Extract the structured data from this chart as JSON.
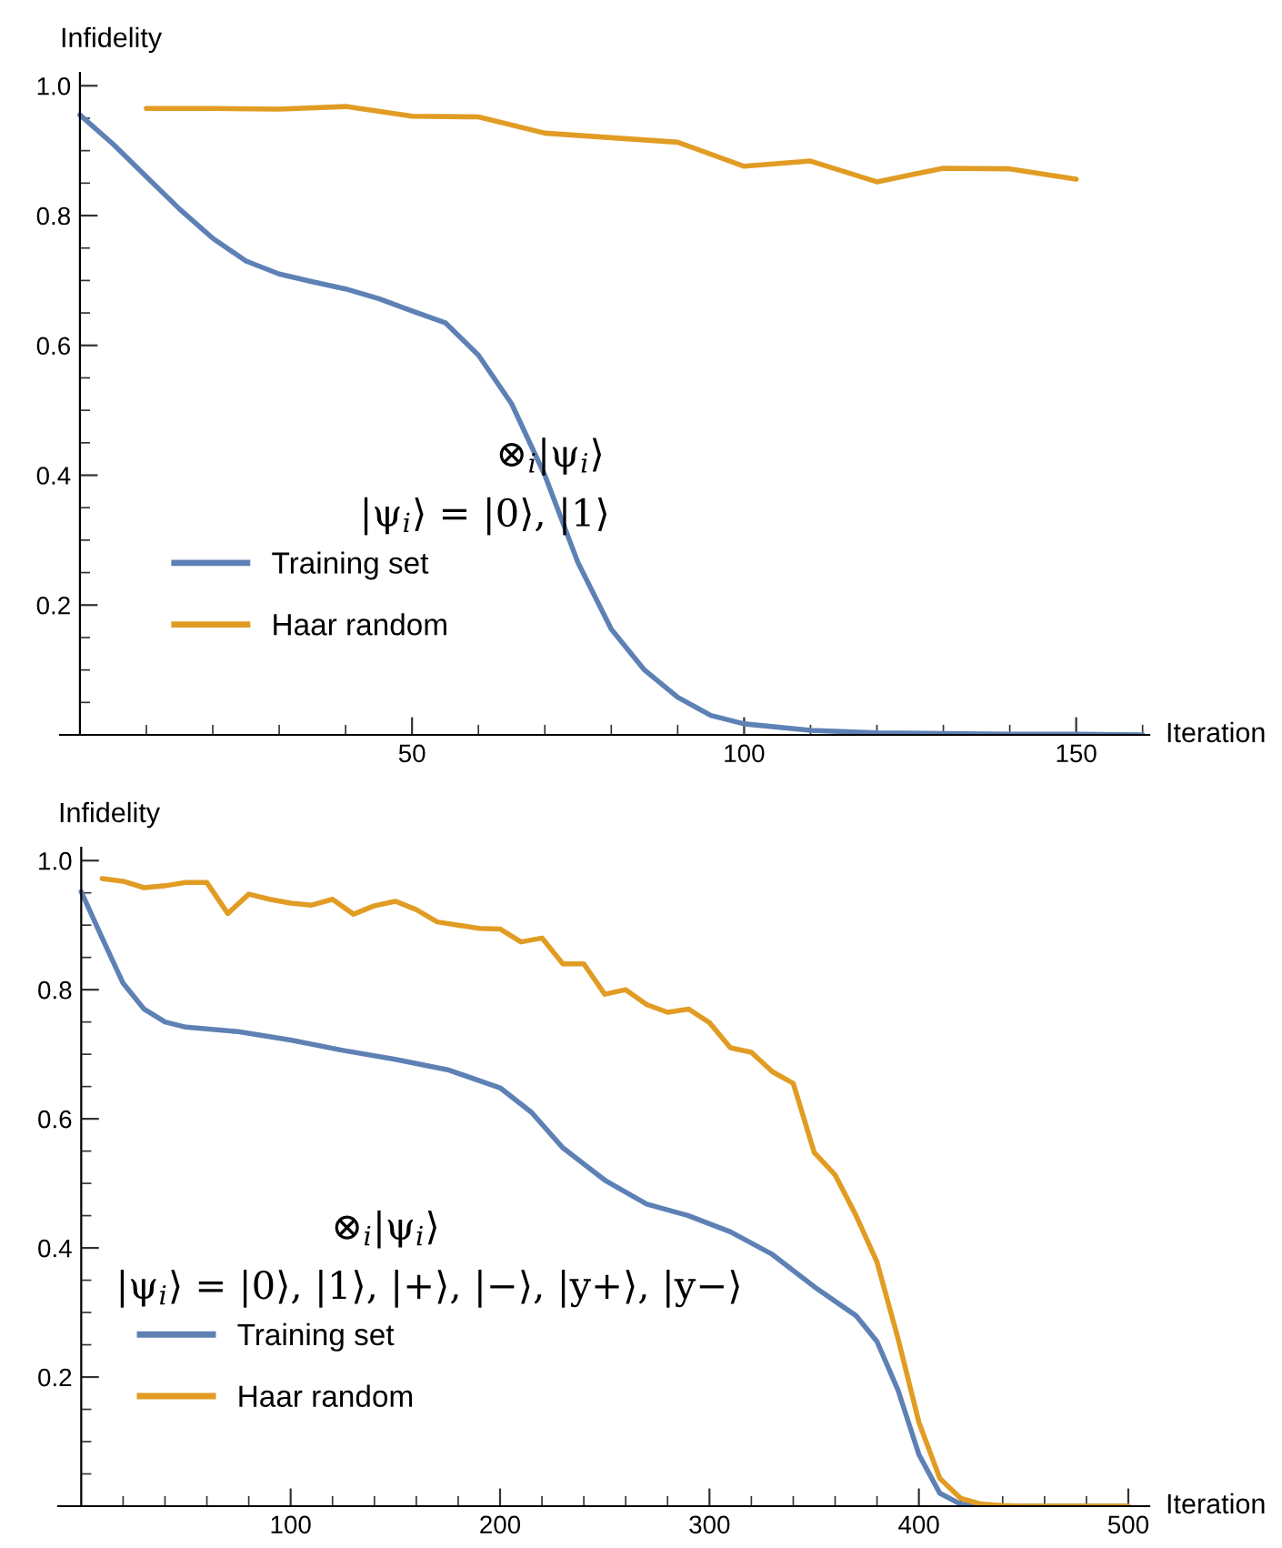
{
  "chart_data": [
    {
      "type": "line",
      "xlabel": "Iteration",
      "ylabel": "Infidelity",
      "xlim": [
        -3,
        161
      ],
      "ylim": [
        0,
        1.02
      ],
      "xticks": [
        {
          "value": 10,
          "label": null
        },
        {
          "value": 20,
          "label": null
        },
        {
          "value": 30,
          "label": null
        },
        {
          "value": 40,
          "label": null
        },
        50,
        {
          "value": 60,
          "label": null
        },
        {
          "value": 70,
          "label": null
        },
        {
          "value": 80,
          "label": null
        },
        {
          "value": 90,
          "label": null
        },
        100,
        {
          "value": 110,
          "label": null
        },
        {
          "value": 120,
          "label": null
        },
        {
          "value": 130,
          "label": null
        },
        {
          "value": 140,
          "label": null
        },
        150,
        {
          "value": 160,
          "label": null
        }
      ],
      "yticks": [
        {
          "value": 0.05,
          "label": null
        },
        {
          "value": 0.1,
          "label": null
        },
        {
          "value": 0.15,
          "label": null
        },
        0.2,
        {
          "value": 0.25,
          "label": null
        },
        {
          "value": 0.3,
          "label": null
        },
        {
          "value": 0.35,
          "label": null
        },
        0.4,
        {
          "value": 0.45,
          "label": null
        },
        {
          "value": 0.5,
          "label": null
        },
        {
          "value": 0.55,
          "label": null
        },
        0.6,
        {
          "value": 0.65,
          "label": null
        },
        {
          "value": 0.7,
          "label": null
        },
        {
          "value": 0.75,
          "label": null
        },
        0.8,
        {
          "value": 0.85,
          "label": null
        },
        {
          "value": 0.9,
          "label": null
        },
        {
          "value": 0.95,
          "label": null
        },
        {
          "value": 1.0,
          "label": "1.0"
        }
      ],
      "annotations": [
        "⊗$_{i}$|ψ$_{i}$⟩",
        "|ψ$_{i}$⟩ = |0⟩, |1⟩"
      ],
      "legend": "bottom left",
      "series": [
        {
          "name": "Training set",
          "color": "#5e81b5",
          "x": [
            0,
            5,
            10,
            15,
            20,
            25,
            30,
            35,
            40,
            45,
            50,
            55,
            60,
            65,
            70,
            75,
            80,
            85,
            90,
            95,
            100,
            110,
            120,
            130,
            140,
            150,
            160
          ],
          "values": [
            0.955,
            0.91,
            0.86,
            0.81,
            0.765,
            0.73,
            0.71,
            0.698,
            0.687,
            0.672,
            0.653,
            0.635,
            0.585,
            0.51,
            0.4,
            0.265,
            0.163,
            0.1,
            0.058,
            0.03,
            0.017,
            0.007,
            0.003,
            0.002,
            0.001,
            0.001,
            0.0
          ]
        },
        {
          "name": "Haar random",
          "color": "#e19c24",
          "x": [
            10,
            20,
            30,
            40,
            50,
            60,
            70,
            80,
            90,
            100,
            110,
            120,
            130,
            140,
            150
          ],
          "values": [
            0.965,
            0.965,
            0.964,
            0.968,
            0.953,
            0.952,
            0.927,
            0.92,
            0.913,
            0.876,
            0.884,
            0.852,
            0.873,
            0.872,
            0.856
          ]
        }
      ]
    },
    {
      "type": "line",
      "xlabel": "Iteration",
      "ylabel": "Infidelity",
      "xlim": [
        -11,
        510
      ],
      "ylim": [
        0,
        1.02
      ],
      "xticks": [
        {
          "value": 20,
          "label": null
        },
        {
          "value": 40,
          "label": null
        },
        {
          "value": 60,
          "label": null
        },
        {
          "value": 80,
          "label": null
        },
        100,
        {
          "value": 120,
          "label": null
        },
        {
          "value": 140,
          "label": null
        },
        {
          "value": 160,
          "label": null
        },
        {
          "value": 180,
          "label": null
        },
        200,
        {
          "value": 220,
          "label": null
        },
        {
          "value": 240,
          "label": null
        },
        {
          "value": 260,
          "label": null
        },
        {
          "value": 280,
          "label": null
        },
        300,
        {
          "value": 320,
          "label": null
        },
        {
          "value": 340,
          "label": null
        },
        {
          "value": 360,
          "label": null
        },
        {
          "value": 380,
          "label": null
        },
        400,
        {
          "value": 420,
          "label": null
        },
        {
          "value": 440,
          "label": null
        },
        {
          "value": 460,
          "label": null
        },
        {
          "value": 480,
          "label": null
        },
        500
      ],
      "yticks": [
        {
          "value": 0.05,
          "label": null
        },
        {
          "value": 0.1,
          "label": null
        },
        {
          "value": 0.15,
          "label": null
        },
        0.2,
        {
          "value": 0.25,
          "label": null
        },
        {
          "value": 0.3,
          "label": null
        },
        {
          "value": 0.35,
          "label": null
        },
        0.4,
        {
          "value": 0.45,
          "label": null
        },
        {
          "value": 0.5,
          "label": null
        },
        {
          "value": 0.55,
          "label": null
        },
        0.6,
        {
          "value": 0.65,
          "label": null
        },
        {
          "value": 0.7,
          "label": null
        },
        {
          "value": 0.75,
          "label": null
        },
        0.8,
        {
          "value": 0.85,
          "label": null
        },
        {
          "value": 0.9,
          "label": null
        },
        {
          "value": 0.95,
          "label": null
        },
        {
          "value": 1.0,
          "label": "1.0"
        }
      ],
      "annotations": [
        "⊗$_{i}$|ψ$_{i}$⟩",
        "|ψ$_{i}$⟩ = |0⟩, |1⟩, |+⟩, |−⟩, |y+⟩, |y−⟩"
      ],
      "legend": "bottom left",
      "series": [
        {
          "name": "Training set",
          "color": "#5e81b5",
          "x": [
            0,
            10,
            20,
            30,
            40,
            50,
            75,
            100,
            125,
            150,
            175,
            200,
            215,
            230,
            250,
            270,
            290,
            310,
            330,
            350,
            370,
            380,
            390,
            400,
            410,
            420,
            440,
            500
          ],
          "values": [
            0.952,
            0.88,
            0.81,
            0.77,
            0.75,
            0.742,
            0.735,
            0.722,
            0.706,
            0.692,
            0.676,
            0.648,
            0.61,
            0.555,
            0.505,
            0.468,
            0.45,
            0.425,
            0.39,
            0.34,
            0.295,
            0.255,
            0.18,
            0.08,
            0.02,
            0.003,
            0.0,
            0.0
          ]
        },
        {
          "name": "Haar random",
          "color": "#e19c24",
          "x": [
            10,
            20,
            30,
            40,
            50,
            60,
            70,
            80,
            90,
            100,
            110,
            120,
            130,
            140,
            150,
            160,
            170,
            180,
            190,
            200,
            210,
            220,
            230,
            240,
            250,
            260,
            270,
            280,
            290,
            300,
            310,
            320,
            330,
            340,
            350,
            360,
            370,
            380,
            390,
            400,
            410,
            420,
            430,
            440,
            450,
            460,
            470,
            480,
            490,
            500
          ],
          "values": [
            0.972,
            0.968,
            0.958,
            0.961,
            0.966,
            0.966,
            0.918,
            0.948,
            0.94,
            0.934,
            0.931,
            0.94,
            0.917,
            0.93,
            0.937,
            0.924,
            0.905,
            0.9,
            0.895,
            0.894,
            0.874,
            0.88,
            0.84,
            0.84,
            0.793,
            0.8,
            0.777,
            0.765,
            0.77,
            0.749,
            0.71,
            0.703,
            0.673,
            0.655,
            0.548,
            0.513,
            0.45,
            0.378,
            0.26,
            0.13,
            0.043,
            0.012,
            0.003,
            0.001,
            0.0,
            0.0,
            0.0,
            0.0,
            0.0,
            0.0
          ]
        }
      ]
    }
  ]
}
